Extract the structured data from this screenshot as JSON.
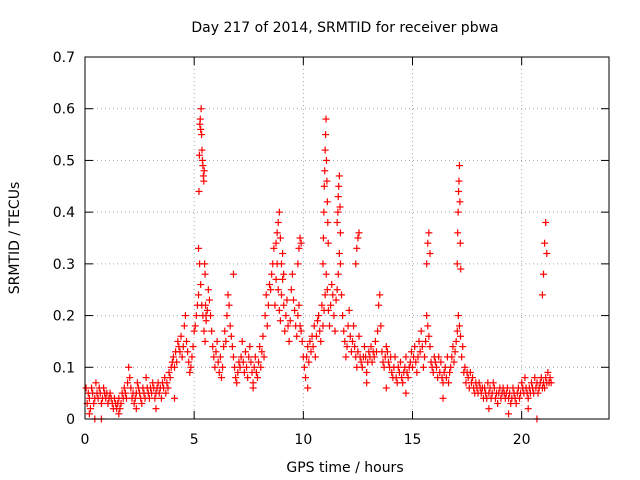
{
  "chart_data": {
    "type": "scatter",
    "title": "Day 217 of 2014, SRMTID for receiver pbwa",
    "xlabel": "GPS time / hours",
    "ylabel": "SRMTID / TECUs",
    "xlim": [
      0,
      24
    ],
    "ylim": [
      0,
      0.7
    ],
    "grid": true,
    "marker": "+",
    "x_ticks": [
      {
        "value": 0,
        "label": "0"
      },
      {
        "value": 5,
        "label": "5"
      },
      {
        "value": 10,
        "label": "10"
      },
      {
        "value": 15,
        "label": "15"
      },
      {
        "value": 20,
        "label": "20"
      }
    ],
    "y_ticks": [
      {
        "value": 0,
        "label": "0"
      },
      {
        "value": 0.1,
        "label": "0.1"
      },
      {
        "value": 0.2,
        "label": "0.2"
      },
      {
        "value": 0.3,
        "label": "0.3"
      },
      {
        "value": 0.4,
        "label": "0.4"
      },
      {
        "value": 0.5,
        "label": "0.5"
      },
      {
        "value": 0.6,
        "label": "0.6"
      },
      {
        "value": 0.7,
        "label": "0.7"
      }
    ],
    "series": [
      {
        "name": "SRMTID",
        "color": "#ff0000",
        "x": [
          0.05,
          0.1,
          0.15,
          0.2,
          0.25,
          0.3,
          0.35,
          0.4,
          0.45,
          0.5,
          0.55,
          0.6,
          0.65,
          0.7,
          0.75,
          0.8,
          0.85,
          0.9,
          0.95,
          1.0,
          1.05,
          1.1,
          1.15,
          1.2,
          1.25,
          1.3,
          1.35,
          1.4,
          1.45,
          1.5,
          1.55,
          1.6,
          1.65,
          1.7,
          1.75,
          1.8,
          1.85,
          1.9,
          1.95,
          2.0,
          2.05,
          2.1,
          2.15,
          2.2,
          2.25,
          2.3,
          2.35,
          2.4,
          2.45,
          2.5,
          2.55,
          2.6,
          2.65,
          2.7,
          2.75,
          2.8,
          2.85,
          2.9,
          2.95,
          3.0,
          3.05,
          3.1,
          3.15,
          3.2,
          3.25,
          3.3,
          3.35,
          3.4,
          3.45,
          3.5,
          3.55,
          3.6,
          3.65,
          3.7,
          3.75,
          3.8,
          3.85,
          3.9,
          3.95,
          4.0,
          4.05,
          4.1,
          4.15,
          4.2,
          4.25,
          4.3,
          4.35,
          4.4,
          4.45,
          4.5,
          4.55,
          4.6,
          4.65,
          4.7,
          4.75,
          4.8,
          4.85,
          4.9,
          4.95,
          5.0,
          5.05,
          5.1,
          5.15,
          5.2,
          5.25,
          5.3,
          5.35,
          5.4,
          5.45,
          5.5,
          5.55,
          5.6,
          5.65,
          5.7,
          5.75,
          5.8,
          5.85,
          5.9,
          5.95,
          6.0,
          6.05,
          6.1,
          6.15,
          6.2,
          6.25,
          6.3,
          6.35,
          6.4,
          6.45,
          6.5,
          6.55,
          6.6,
          6.65,
          6.7,
          6.75,
          6.8,
          6.85,
          6.9,
          6.95,
          7.0,
          7.05,
          7.1,
          7.15,
          7.2,
          7.25,
          7.3,
          7.35,
          7.4,
          7.45,
          7.5,
          7.55,
          7.6,
          7.65,
          7.7,
          7.75,
          7.8,
          7.85,
          7.9,
          7.95,
          8.0,
          8.05,
          8.1,
          8.15,
          8.2,
          8.25,
          8.3,
          8.35,
          8.4,
          8.45,
          8.5,
          8.55,
          8.6,
          8.65,
          8.7,
          8.75,
          8.8,
          8.85,
          8.9,
          8.95,
          9.0,
          9.05,
          9.1,
          9.15,
          9.2,
          9.25,
          9.3,
          9.35,
          9.4,
          9.45,
          9.5,
          9.55,
          9.6,
          9.65,
          9.7,
          9.75,
          9.8,
          9.85,
          9.9,
          9.95,
          10.0,
          10.05,
          10.1,
          10.15,
          10.2,
          10.25,
          10.3,
          10.35,
          10.4,
          10.45,
          10.5,
          10.55,
          10.6,
          10.65,
          10.7,
          10.75,
          10.8,
          10.85,
          10.9,
          10.95,
          11.0,
          11.05,
          11.1,
          11.15,
          11.2,
          11.25,
          11.3,
          11.35,
          11.4,
          11.45,
          11.5,
          11.55,
          11.6,
          11.65,
          11.7,
          11.75,
          11.8,
          11.85,
          11.9,
          11.95,
          12.0,
          12.05,
          12.1,
          12.15,
          12.2,
          12.25,
          12.3,
          12.35,
          12.4,
          12.45,
          12.5,
          12.55,
          12.6,
          12.65,
          12.7,
          12.75,
          12.8,
          12.85,
          12.9,
          12.95,
          13.0,
          13.05,
          13.1,
          13.15,
          13.2,
          13.25,
          13.3,
          13.35,
          13.4,
          13.45,
          13.5,
          13.55,
          13.6,
          13.65,
          13.7,
          13.75,
          13.8,
          13.85,
          13.9,
          13.95,
          14.0,
          14.05,
          14.1,
          14.15,
          14.2,
          14.25,
          14.3,
          14.35,
          14.4,
          14.45,
          14.5,
          14.55,
          14.6,
          14.65,
          14.7,
          14.75,
          14.8,
          14.85,
          14.9,
          14.95,
          15.0,
          15.05,
          15.1,
          15.15,
          15.2,
          15.25,
          15.3,
          15.35,
          15.4,
          15.45,
          15.5,
          15.55,
          15.6,
          15.65,
          15.7,
          15.75,
          15.8,
          15.85,
          15.9,
          15.95,
          16.0,
          16.05,
          16.1,
          16.15,
          16.2,
          16.25,
          16.3,
          16.35,
          16.4,
          16.45,
          16.5,
          16.55,
          16.6,
          16.65,
          16.7,
          16.75,
          16.8,
          16.85,
          16.9,
          16.95,
          17.0,
          17.05,
          17.1,
          17.15,
          17.2,
          17.25,
          17.3,
          17.35,
          17.4,
          17.45,
          17.5,
          17.55,
          17.6,
          17.65,
          17.7,
          17.75,
          17.8,
          17.85,
          17.9,
          17.95,
          18.0,
          18.05,
          18.1,
          18.15,
          18.2,
          18.25,
          18.3,
          18.35,
          18.4,
          18.45,
          18.5,
          18.55,
          18.6,
          18.65,
          18.7,
          18.75,
          18.8,
          18.85,
          18.9,
          18.95,
          19.0,
          19.05,
          19.1,
          19.15,
          19.2,
          19.25,
          19.3,
          19.35,
          19.4,
          19.45,
          19.5,
          19.55,
          19.6,
          19.65,
          19.7,
          19.75,
          19.8,
          19.85,
          19.9,
          19.95,
          20.0,
          20.05,
          20.1,
          20.15,
          20.2,
          20.25,
          20.3,
          20.35,
          20.4,
          20.45,
          20.5,
          20.55,
          20.6,
          20.65,
          20.7,
          20.75,
          20.8,
          20.85,
          20.9,
          20.95,
          21.0,
          21.05,
          21.1,
          21.15,
          21.2,
          21.25,
          21.3,
          21.35,
          5.2,
          5.22,
          5.24,
          5.26,
          5.28,
          5.3,
          5.32,
          5.34,
          5.36,
          5.38,
          5.4,
          5.42,
          5.44,
          5.46,
          5.48,
          5.5,
          5.52,
          5.54,
          10.9,
          10.92,
          10.94,
          10.96,
          10.98,
          11.0,
          11.02,
          11.04,
          11.06,
          11.08,
          11.1,
          11.12,
          11.14,
          11.55,
          11.58,
          11.6,
          11.62,
          11.65,
          11.68,
          11.7,
          17.05,
          17.07,
          17.09,
          17.11,
          17.13,
          17.15,
          17.17,
          17.19,
          17.21,
          8.75,
          8.8,
          8.85,
          8.9,
          8.95,
          9.0,
          9.05,
          9.1,
          9.75,
          9.8,
          9.85,
          9.9,
          12.4,
          12.45,
          12.5,
          12.55,
          15.65,
          15.7,
          15.75,
          15.8,
          20.95,
          21.0,
          21.05,
          21.1,
          21.15,
          0.2,
          0.45,
          0.75,
          1.55,
          2.35,
          3.25,
          4.1,
          6.8,
          7.7,
          10.2,
          12.9,
          13.8,
          14.7,
          16.4,
          18.5,
          19.4,
          20.3,
          20.7
        ],
        "y": [
          0.06,
          0.03,
          0.05,
          0.04,
          0.02,
          0.06,
          0.05,
          0.03,
          0.04,
          0.07,
          0.05,
          0.04,
          0.06,
          0.05,
          0.03,
          0.04,
          0.06,
          0.05,
          0.04,
          0.05,
          0.03,
          0.04,
          0.05,
          0.04,
          0.03,
          0.02,
          0.04,
          0.03,
          0.02,
          0.03,
          0.04,
          0.02,
          0.03,
          0.05,
          0.04,
          0.06,
          0.05,
          0.04,
          0.07,
          0.1,
          0.08,
          0.06,
          0.04,
          0.05,
          0.03,
          0.04,
          0.05,
          0.07,
          0.06,
          0.05,
          0.04,
          0.03,
          0.06,
          0.05,
          0.04,
          0.08,
          0.06,
          0.05,
          0.04,
          0.06,
          0.05,
          0.07,
          0.06,
          0.04,
          0.05,
          0.06,
          0.07,
          0.05,
          0.06,
          0.04,
          0.07,
          0.06,
          0.08,
          0.05,
          0.07,
          0.06,
          0.09,
          0.08,
          0.1,
          0.11,
          0.12,
          0.1,
          0.13,
          0.11,
          0.15,
          0.14,
          0.13,
          0.16,
          0.12,
          0.14,
          0.18,
          0.2,
          0.15,
          0.13,
          0.11,
          0.09,
          0.1,
          0.12,
          0.14,
          0.17,
          0.18,
          0.2,
          0.22,
          0.24,
          0.3,
          0.26,
          0.22,
          0.2,
          0.17,
          0.15,
          0.19,
          0.21,
          0.25,
          0.23,
          0.2,
          0.17,
          0.14,
          0.12,
          0.1,
          0.13,
          0.15,
          0.11,
          0.09,
          0.12,
          0.08,
          0.1,
          0.14,
          0.17,
          0.15,
          0.2,
          0.24,
          0.22,
          0.18,
          0.16,
          0.14,
          0.12,
          0.1,
          0.08,
          0.07,
          0.09,
          0.11,
          0.1,
          0.12,
          0.15,
          0.11,
          0.09,
          0.13,
          0.1,
          0.08,
          0.12,
          0.14,
          0.11,
          0.09,
          0.07,
          0.1,
          0.12,
          0.09,
          0.08,
          0.11,
          0.14,
          0.1,
          0.13,
          0.16,
          0.12,
          0.2,
          0.24,
          0.18,
          0.22,
          0.26,
          0.25,
          0.28,
          0.3,
          0.33,
          0.22,
          0.27,
          0.3,
          0.25,
          0.21,
          0.19,
          0.24,
          0.27,
          0.22,
          0.17,
          0.2,
          0.23,
          0.18,
          0.15,
          0.19,
          0.25,
          0.28,
          0.23,
          0.21,
          0.18,
          0.16,
          0.2,
          0.22,
          0.18,
          0.17,
          0.15,
          0.12,
          0.1,
          0.08,
          0.12,
          0.14,
          0.11,
          0.15,
          0.13,
          0.16,
          0.14,
          0.18,
          0.12,
          0.16,
          0.19,
          0.2,
          0.17,
          0.15,
          0.22,
          0.18,
          0.21,
          0.24,
          0.28,
          0.25,
          0.21,
          0.18,
          0.22,
          0.26,
          0.24,
          0.2,
          0.17,
          0.23,
          0.25,
          0.28,
          0.32,
          0.3,
          0.24,
          0.2,
          0.17,
          0.15,
          0.12,
          0.14,
          0.18,
          0.21,
          0.16,
          0.13,
          0.15,
          0.18,
          0.14,
          0.12,
          0.1,
          0.13,
          0.16,
          0.12,
          0.11,
          0.1,
          0.12,
          0.14,
          0.12,
          0.09,
          0.11,
          0.13,
          0.12,
          0.14,
          0.11,
          0.13,
          0.12,
          0.15,
          0.13,
          0.17,
          0.22,
          0.24,
          0.18,
          0.13,
          0.11,
          0.1,
          0.12,
          0.14,
          0.13,
          0.11,
          0.1,
          0.12,
          0.09,
          0.08,
          0.1,
          0.12,
          0.08,
          0.07,
          0.1,
          0.09,
          0.11,
          0.08,
          0.07,
          0.09,
          0.1,
          0.12,
          0.09,
          0.08,
          0.1,
          0.11,
          0.13,
          0.1,
          0.12,
          0.14,
          0.11,
          0.09,
          0.12,
          0.15,
          0.13,
          0.17,
          0.14,
          0.1,
          0.12,
          0.15,
          0.2,
          0.18,
          0.16,
          0.14,
          0.11,
          0.1,
          0.09,
          0.12,
          0.11,
          0.1,
          0.08,
          0.12,
          0.09,
          0.11,
          0.08,
          0.07,
          0.09,
          0.1,
          0.08,
          0.12,
          0.07,
          0.09,
          0.1,
          0.12,
          0.14,
          0.11,
          0.13,
          0.15,
          0.17,
          0.2,
          0.18,
          0.16,
          0.12,
          0.14,
          0.09,
          0.1,
          0.07,
          0.09,
          0.08,
          0.06,
          0.09,
          0.07,
          0.08,
          0.06,
          0.05,
          0.07,
          0.06,
          0.05,
          0.07,
          0.06,
          0.05,
          0.06,
          0.04,
          0.06,
          0.05,
          0.04,
          0.07,
          0.05,
          0.06,
          0.04,
          0.05,
          0.07,
          0.06,
          0.04,
          0.05,
          0.03,
          0.05,
          0.06,
          0.04,
          0.05,
          0.06,
          0.05,
          0.04,
          0.05,
          0.06,
          0.04,
          0.05,
          0.03,
          0.04,
          0.06,
          0.05,
          0.04,
          0.03,
          0.05,
          0.06,
          0.04,
          0.05,
          0.07,
          0.06,
          0.05,
          0.08,
          0.06,
          0.05,
          0.04,
          0.06,
          0.05,
          0.07,
          0.06,
          0.05,
          0.08,
          0.06,
          0.07,
          0.05,
          0.06,
          0.07,
          0.08,
          0.06,
          0.07,
          0.06,
          0.08,
          0.07,
          0.09,
          0.07,
          0.08,
          0.07,
          0.33,
          0.44,
          0.51,
          0.57,
          0.58,
          0.56,
          0.6,
          0.55,
          0.52,
          0.5,
          0.49,
          0.47,
          0.46,
          0.48,
          0.3,
          0.28,
          0.22,
          0.2,
          0.3,
          0.35,
          0.4,
          0.45,
          0.48,
          0.52,
          0.55,
          0.58,
          0.5,
          0.46,
          0.42,
          0.38,
          0.34,
          0.38,
          0.4,
          0.43,
          0.45,
          0.47,
          0.41,
          0.36,
          0.3,
          0.36,
          0.4,
          0.44,
          0.46,
          0.49,
          0.42,
          0.34,
          0.29,
          0.34,
          0.36,
          0.38,
          0.4,
          0.35,
          0.3,
          0.32,
          0.28,
          0.3,
          0.33,
          0.35,
          0.34,
          0.3,
          0.33,
          0.35,
          0.36,
          0.3,
          0.34,
          0.36,
          0.32,
          0.24,
          0.28,
          0.34,
          0.38,
          0.32,
          0.01,
          0.0,
          0.0,
          0.01,
          0.02,
          0.02,
          0.04,
          0.28,
          0.06,
          0.06,
          0.07,
          0.06,
          0.05,
          0.04,
          0.02,
          0.01,
          0.02,
          0.0
        ]
      }
    ]
  }
}
